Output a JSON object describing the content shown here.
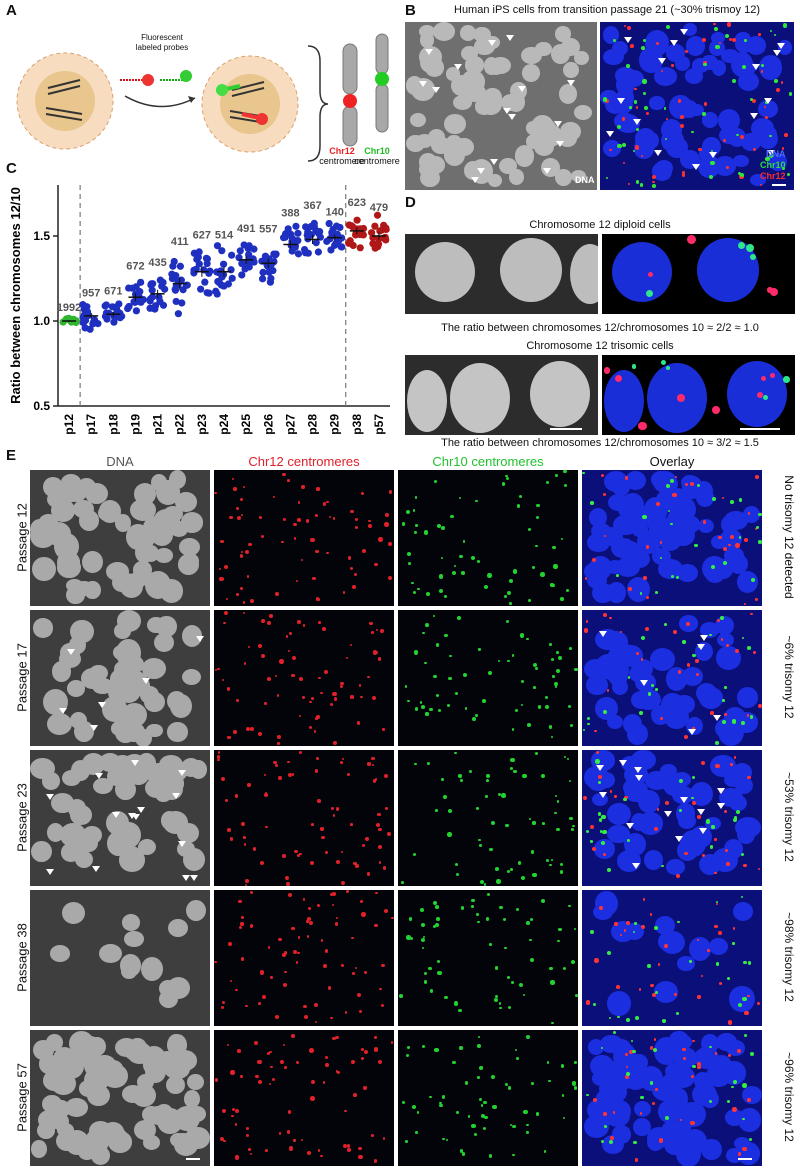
{
  "panels": {
    "A": {
      "letter": "A",
      "probe_label_line1": "Fluorescent",
      "probe_label_line2": "labeled probes",
      "chr12_name": "Chr12",
      "chr12_sub": "centromere",
      "chr10_name": "Chr10",
      "chr10_sub": "centromere"
    },
    "B": {
      "letter": "B",
      "title": "Human iPS cells from transition passage 21 (~30% trismoy 12)",
      "dna_tag": "DNA",
      "legend_dna": "DNA",
      "legend_chr10": "Chr10",
      "legend_chr12": "Chr12"
    },
    "C": {
      "letter": "C"
    },
    "D": {
      "letter": "D",
      "diploid_title": "Chromosome 12 diploid cells",
      "diploid_ratio": "The ratio between chromosomes 12/chromosomes 10 ≈ 2/2  ≈ 1.0",
      "trisomic_title": "Chromosome 12 trisomic cells",
      "trisomic_ratio": "The ratio between chromosomes 12/chromosomes 10 ≈ 3/2  ≈ 1.5"
    },
    "E": {
      "letter": "E",
      "col_headers": [
        "DNA",
        "Chr12 centromeres",
        "Chr10 centromeres",
        "Overlay"
      ],
      "rows": [
        {
          "label": "Passage 12",
          "result": "No trisomy 12 detected"
        },
        {
          "label": "Passage 17",
          "result": "~6% trisomy 12"
        },
        {
          "label": "Passage 23",
          "result": "~53% trisomy 12"
        },
        {
          "label": "Passage 38",
          "result": "~98% trisomy 12"
        },
        {
          "label": "Passage 57",
          "result": "~96% trisomy 12"
        }
      ]
    }
  },
  "colors": {
    "green": "#31b52e",
    "blue": "#1f2fbf",
    "red": "#b01818",
    "text_gray": "#555555",
    "chr12_red": "#e0202a",
    "chr10_green": "#22c22e"
  },
  "chart_data": {
    "type": "scatter",
    "ylabel": "Ratio between chromosomes 12/10",
    "ylim": [
      0.5,
      1.8
    ],
    "yticks": [
      "0.5",
      "1.0",
      "1.5"
    ],
    "categories": [
      "p12",
      "p17",
      "p18",
      "p19",
      "p21",
      "p22",
      "p23",
      "p24",
      "p25",
      "p26",
      "p27",
      "p28",
      "p29",
      "p38",
      "p57"
    ],
    "counts": [
      "1992",
      "957",
      "671",
      "672",
      "435",
      "411",
      "627",
      "514",
      "491",
      "557",
      "388",
      "367",
      "140",
      "623",
      "479"
    ],
    "means": [
      1.0,
      1.03,
      1.04,
      1.14,
      1.16,
      1.22,
      1.29,
      1.29,
      1.36,
      1.34,
      1.45,
      1.48,
      1.49,
      1.53,
      1.5
    ],
    "spread": [
      0.015,
      0.05,
      0.05,
      0.08,
      0.08,
      0.12,
      0.1,
      0.1,
      0.08,
      0.09,
      0.08,
      0.09,
      0.06,
      0.07,
      0.07
    ],
    "group_colors": [
      "green",
      "blue",
      "blue",
      "blue",
      "blue",
      "blue",
      "blue",
      "blue",
      "blue",
      "blue",
      "blue",
      "blue",
      "blue",
      "red",
      "red"
    ],
    "dividers_after": [
      "p12",
      "p29"
    ]
  }
}
